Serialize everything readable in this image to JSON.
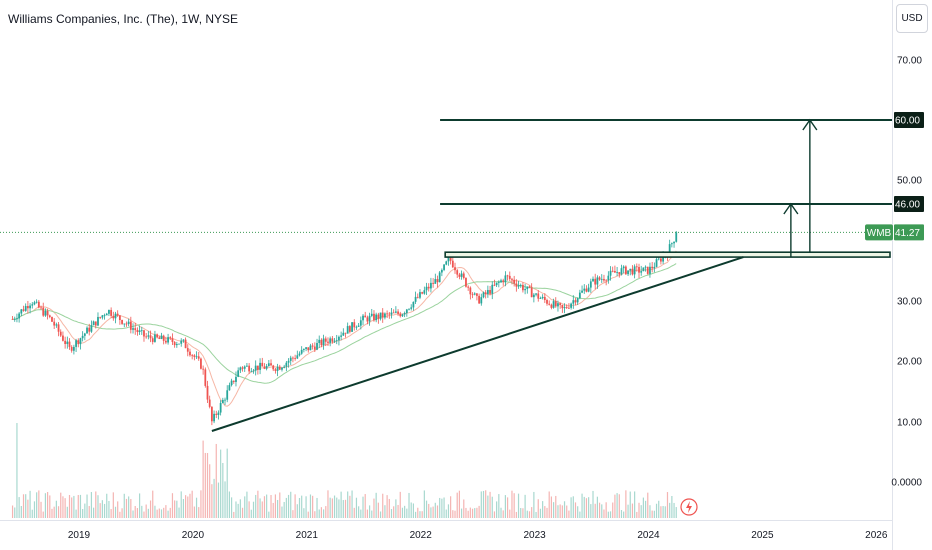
{
  "header": {
    "title": "Williams Companies, Inc. (The), 1W, NYSE",
    "currency": "USD"
  },
  "colors": {
    "up": "#26a69a",
    "down": "#ef5350",
    "line": "#0d3b2e",
    "price": "#3d9a55",
    "ma_fast": "#f6b7a6",
    "ma_slow": "#9bd39e"
  },
  "chart_data": {
    "type": "candlestick",
    "ticker": "WMB",
    "interval": "1W",
    "last_price": 41.27,
    "y_ticks": [
      "70.00",
      "50.00",
      "30.00",
      "20.00",
      "10.00",
      "0.0000"
    ],
    "x_ticks": [
      "2019",
      "2020",
      "2021",
      "2022",
      "2023",
      "2024",
      "2025",
      "2026"
    ],
    "anchors": [
      [
        "2018-06",
        27
      ],
      [
        "2018-08",
        30
      ],
      [
        "2018-10",
        27
      ],
      [
        "2018-12",
        22
      ],
      [
        "2019-04",
        28.5
      ],
      [
        "2019-08",
        24
      ],
      [
        "2019-12",
        23
      ],
      [
        "2020-02",
        19
      ],
      [
        "2020-03",
        10
      ],
      [
        "2020-06",
        19
      ],
      [
        "2020-10",
        19
      ],
      [
        "2021-01",
        22
      ],
      [
        "2021-04",
        24
      ],
      [
        "2021-07",
        27
      ],
      [
        "2021-11",
        28
      ],
      [
        "2022-03",
        34
      ],
      [
        "2022-04",
        37
      ],
      [
        "2022-07",
        30
      ],
      [
        "2022-10",
        34
      ],
      [
        "2023-01",
        31
      ],
      [
        "2023-04",
        28.5
      ],
      [
        "2023-07",
        33
      ],
      [
        "2023-10",
        35
      ],
      [
        "2024-01",
        35
      ],
      [
        "2024-03",
        38
      ],
      [
        "2024-04",
        41.27
      ]
    ],
    "levels": [
      {
        "label": "60.00",
        "value": 60
      },
      {
        "label": "46.00",
        "value": 46
      }
    ],
    "resistance_zone": {
      "low": 37.2,
      "high": 38.0,
      "from": "2022-04",
      "to": "2026-02"
    },
    "trendline": {
      "from": [
        "2020-03",
        8.5
      ],
      "to": [
        "2024-11",
        37.2
      ]
    },
    "arrows": [
      {
        "at": "2025-06",
        "from": 38,
        "to": 60
      },
      {
        "at": "2025-04",
        "from": 37.2,
        "to": 46
      }
    ]
  }
}
